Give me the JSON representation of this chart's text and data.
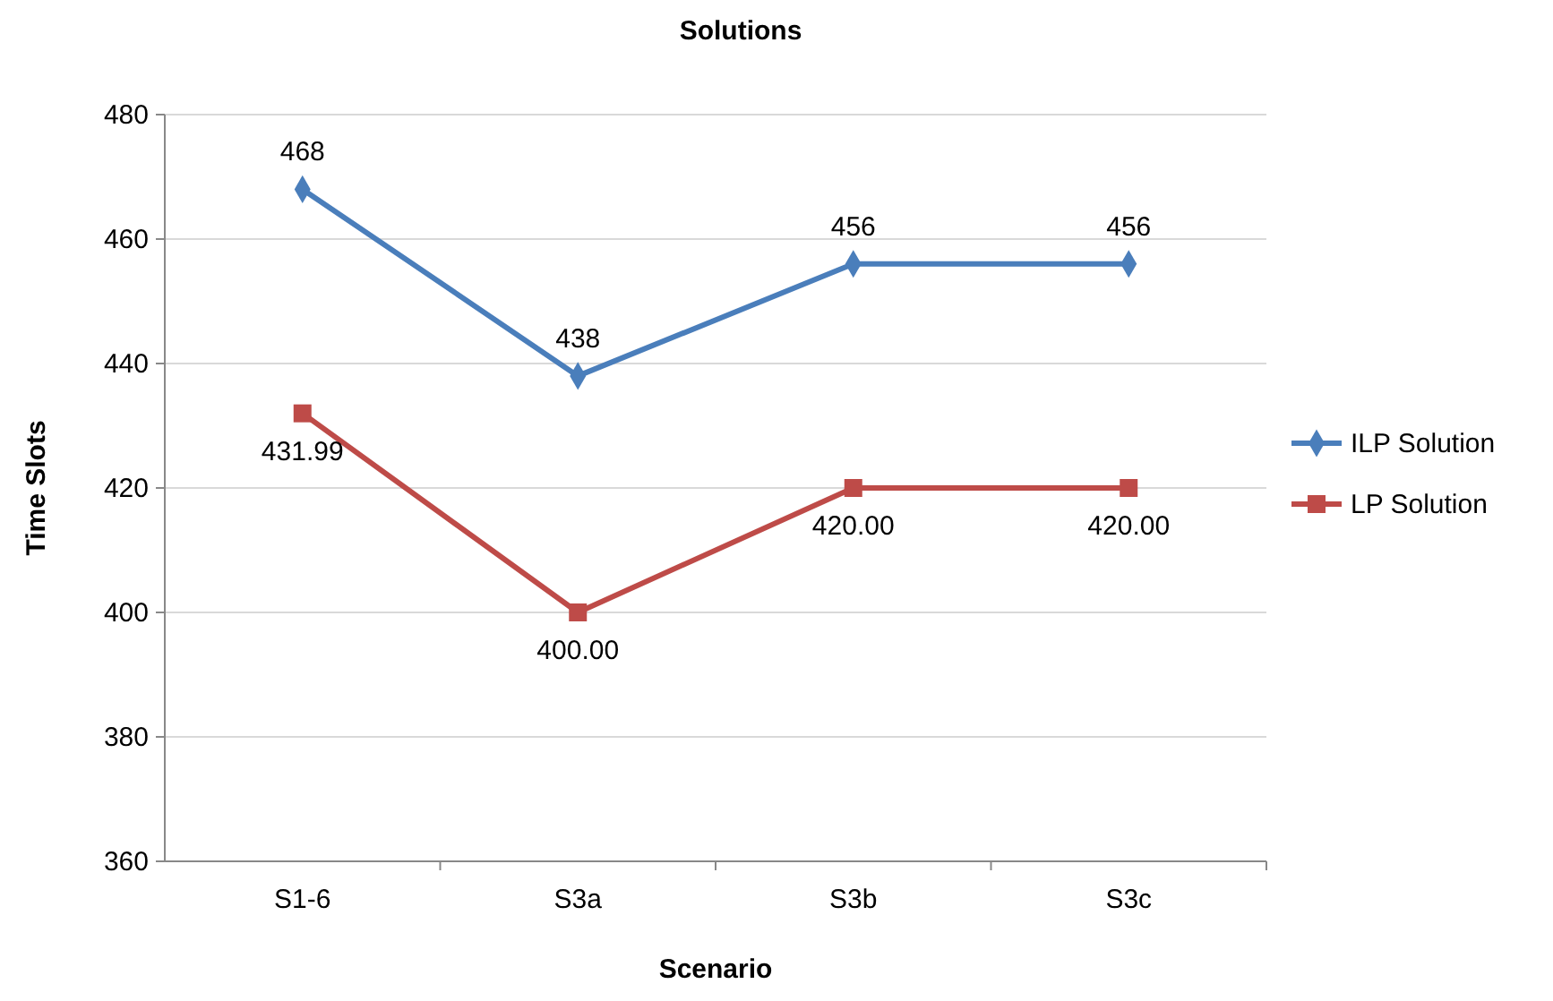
{
  "chart_data": {
    "type": "line",
    "title": "Solutions",
    "xlabel": "Scenario",
    "ylabel": "Time Slots",
    "categories": [
      "S1-6",
      "S3a",
      "S3b",
      "S3c"
    ],
    "ylim": [
      360,
      480
    ],
    "yticks": [
      360,
      380,
      400,
      420,
      440,
      460,
      480
    ],
    "grid": "y",
    "legend": "right",
    "series": [
      {
        "name": "ILP Solution",
        "color": "#4a7ebb",
        "marker": "diamond",
        "values": [
          468,
          438,
          456,
          456
        ],
        "value_labels": [
          "468",
          "438",
          "456",
          "456"
        ]
      },
      {
        "name": "LP Solution",
        "color": "#be4b48",
        "marker": "square",
        "values": [
          431.99,
          400,
          420,
          420
        ],
        "value_labels": [
          "431.99",
          "400.00",
          "420.00",
          "420.00"
        ]
      }
    ]
  }
}
